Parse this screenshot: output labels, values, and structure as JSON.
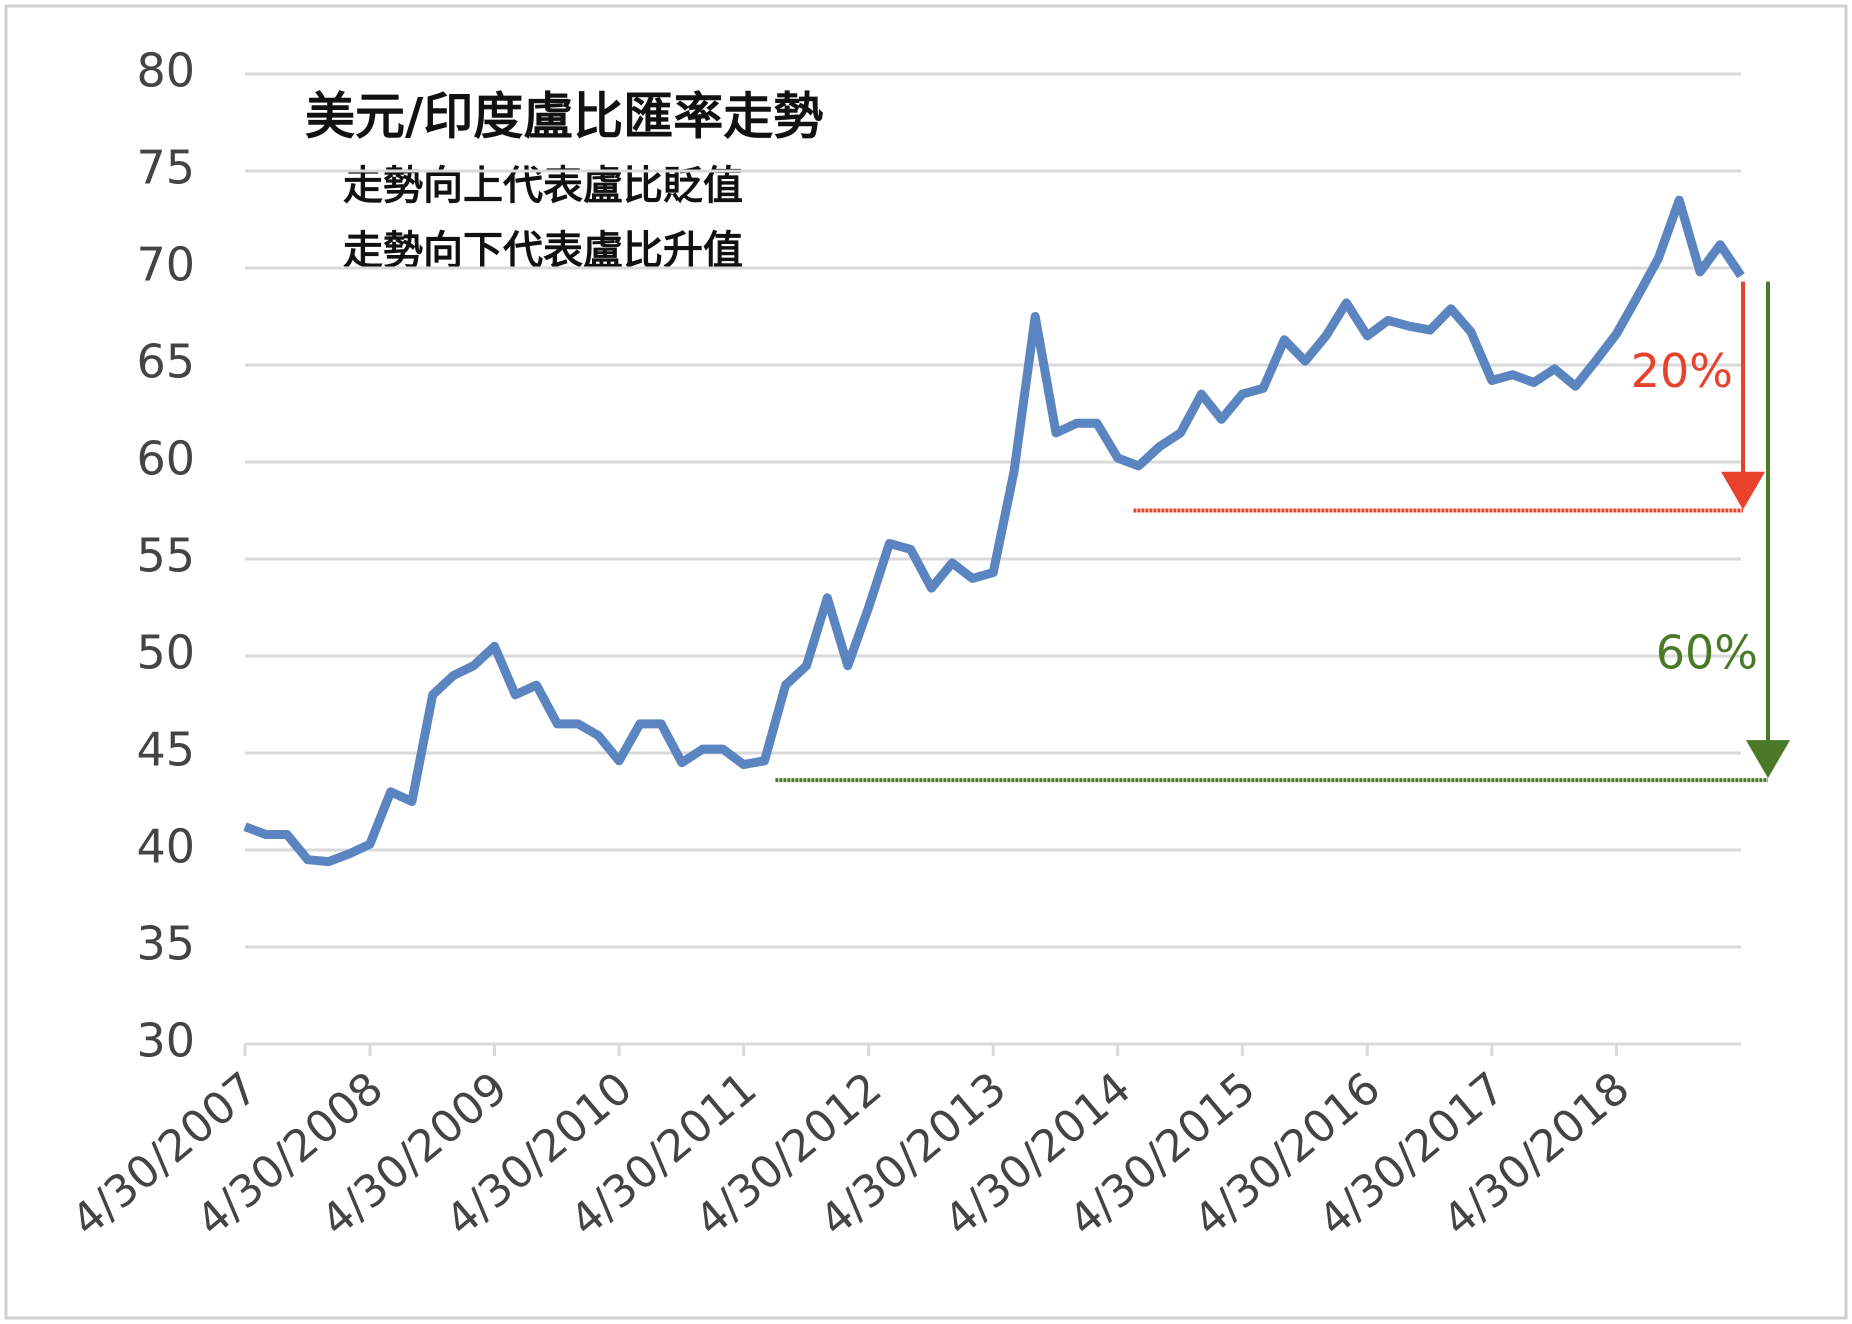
{
  "chart_data": {
    "type": "line",
    "title": "美元/印度盧比匯率走勢",
    "subtitle": [
      "走勢向上代表盧比貶值",
      "走勢向下代表盧比升值"
    ],
    "x": [
      "4/30/2007",
      "6/30/2007",
      "8/31/2007",
      "10/31/2007",
      "12/31/2007",
      "2/29/2008",
      "4/30/2008",
      "6/30/2008",
      "8/31/2008",
      "10/31/2008",
      "12/31/2008",
      "2/28/2009",
      "4/30/2009",
      "6/30/2009",
      "8/31/2009",
      "10/31/2009",
      "12/31/2009",
      "2/28/2010",
      "4/30/2010",
      "6/30/2010",
      "8/31/2010",
      "10/31/2010",
      "12/31/2010",
      "2/28/2011",
      "4/30/2011",
      "6/30/2011",
      "8/31/2011",
      "10/31/2011",
      "12/31/2011",
      "2/29/2012",
      "4/30/2012",
      "6/30/2012",
      "8/31/2012",
      "10/31/2012",
      "12/31/2012",
      "2/28/2013",
      "4/30/2013",
      "6/30/2013",
      "8/31/2013",
      "10/31/2013",
      "12/31/2013",
      "2/28/2014",
      "4/30/2014",
      "6/30/2014",
      "8/31/2014",
      "10/31/2014",
      "12/31/2014",
      "2/28/2015",
      "4/30/2015",
      "6/30/2015",
      "8/31/2015",
      "10/31/2015",
      "12/31/2015",
      "2/29/2016",
      "4/30/2016",
      "6/30/2016",
      "8/31/2016",
      "10/31/2016",
      "12/31/2016",
      "2/28/2017",
      "4/30/2017",
      "6/30/2017",
      "8/31/2017",
      "10/31/2017",
      "12/31/2017",
      "2/28/2018",
      "4/30/2018",
      "6/30/2018",
      "8/31/2018",
      "10/31/2018",
      "12/31/2018",
      "2/28/2019",
      "4/30/2019"
    ],
    "series": [
      {
        "color": "#5b85c0",
        "values": [
          41.2,
          40.8,
          40.8,
          39.5,
          39.4,
          39.8,
          40.3,
          43,
          42.5,
          48,
          49,
          49.5,
          50.5,
          48,
          48.5,
          46.5,
          46.5,
          45.9,
          44.6,
          46.5,
          46.5,
          44.5,
          45.2,
          45.2,
          44.4,
          44.6,
          48.5,
          49.5,
          53,
          49.5,
          52.5,
          55.8,
          55.5,
          53.5,
          54.8,
          54,
          54.3,
          59.5,
          67.5,
          61.5,
          62,
          62,
          60.2,
          59.8,
          60.8,
          61.5,
          63.5,
          62.2,
          63.5,
          63.8,
          66.3,
          65.2,
          66.5,
          68.2,
          66.5,
          67.3,
          67,
          66.8,
          67.9,
          66.7,
          64.2,
          64.5,
          64.1,
          64.8,
          63.9,
          65.2,
          66.6,
          68.5,
          70.5,
          73.5,
          69.8,
          71.2,
          69.6
        ]
      }
    ],
    "xlim": [
      "4/30/2007",
      "4/30/2019"
    ],
    "xticks": [
      "4/30/2007",
      "4/30/2008",
      "4/30/2009",
      "4/30/2010",
      "4/30/2011",
      "4/30/2012",
      "4/30/2013",
      "4/30/2014",
      "4/30/2015",
      "4/30/2016",
      "4/30/2017",
      "4/30/2018"
    ],
    "ylim": [
      30,
      80
    ],
    "yticks": [
      30,
      35,
      40,
      45,
      50,
      55,
      60,
      65,
      70,
      75,
      80
    ],
    "grid": true,
    "annotations": [
      {
        "text": "20%",
        "color": "#e8412c",
        "from": 69.3,
        "to": 57.5,
        "x_start": "6/15/2014"
      },
      {
        "text": "60%",
        "color": "#4a7a28",
        "from": 69.3,
        "to": 43.6,
        "x_start": "8/1/2011"
      }
    ]
  }
}
